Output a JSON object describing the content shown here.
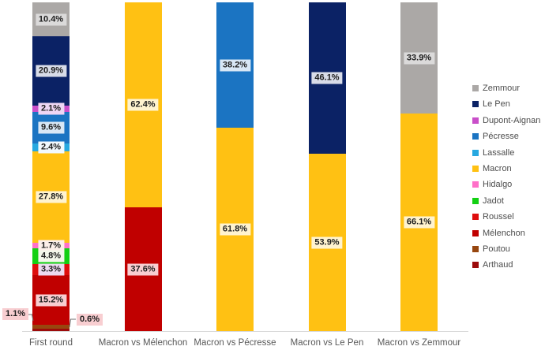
{
  "chart_data": {
    "type": "bar",
    "stacked": true,
    "orientation": "vertical",
    "title": "",
    "xlabel": "",
    "ylabel": "",
    "ylim": [
      0,
      100
    ],
    "grid": false,
    "legend_position": "right",
    "unit": "%",
    "categories": [
      "First round",
      "Macron vs Mélenchon",
      "Macron vs Pécresse",
      "Macron vs Le Pen",
      "Macron vs Zemmour"
    ],
    "series": [
      {
        "name": "Zemmour",
        "color": "#aba8a6",
        "label_bg": "#dbdada",
        "values": [
          10.4,
          null,
          null,
          null,
          33.9
        ]
      },
      {
        "name": "Le Pen",
        "color": "#0b2265",
        "label_bg": "#d8dce8",
        "values": [
          20.9,
          null,
          null,
          46.1,
          null
        ]
      },
      {
        "name": "Dupont-Aignan",
        "color": "#c94fc9",
        "label_bg": "#eed6f4",
        "values": [
          2.1,
          null,
          null,
          null,
          null
        ]
      },
      {
        "name": "Pécresse",
        "color": "#1b74c2",
        "label_bg": "#d8e7f5",
        "values": [
          9.6,
          null,
          38.2,
          null,
          null
        ]
      },
      {
        "name": "Lassalle",
        "color": "#27a8e0",
        "label_bg": "#f2f9fd",
        "values": [
          2.4,
          null,
          null,
          null,
          null
        ]
      },
      {
        "name": "Macron",
        "color": "#ffc113",
        "label_bg": "#fff3cf",
        "values": [
          27.8,
          62.4,
          61.8,
          53.9,
          66.1
        ]
      },
      {
        "name": "Hidalgo",
        "color": "#ff70c8",
        "label_bg": "#fcefe9",
        "values": [
          1.7,
          null,
          null,
          null,
          null
        ]
      },
      {
        "name": "Jadot",
        "color": "#13d013",
        "label_bg": "#f3f7eb",
        "values": [
          4.8,
          null,
          null,
          null,
          null
        ]
      },
      {
        "name": "Roussel",
        "color": "#de0d0d",
        "label_bg": "#eddaf0",
        "values": [
          3.3,
          null,
          null,
          null,
          null
        ]
      },
      {
        "name": "Mélenchon",
        "color": "#c00000",
        "label_bg": "#f8ced1",
        "values": [
          15.2,
          37.6,
          null,
          null,
          null
        ]
      },
      {
        "name": "Poutou",
        "color": "#97460f",
        "label_bg": "#f8ced1",
        "values": [
          1.1,
          null,
          null,
          null,
          null
        ]
      },
      {
        "name": "Arthaud",
        "color": "#9c0b0b",
        "label_bg": "#f8ced1",
        "values": [
          0.6,
          null,
          null,
          null,
          null
        ]
      }
    ],
    "data_labels": {
      "inside": [
        "10.4%",
        "20.9%",
        "2.1%",
        "9.6%",
        "2.4%",
        "27.8%",
        "1.7%",
        "4.8%",
        "3.3%",
        "15.2%",
        "62.4%",
        "37.6%",
        "38.2%",
        "61.8%",
        "46.1%",
        "53.9%",
        "33.9%",
        "66.1%"
      ],
      "callouts": [
        {
          "series": "Poutou",
          "label": "1.1%",
          "bg": "#f8ced1",
          "side": "left"
        },
        {
          "series": "Arthaud",
          "label": "0.6%",
          "bg": "#f8ced1",
          "side": "right"
        }
      ]
    }
  }
}
